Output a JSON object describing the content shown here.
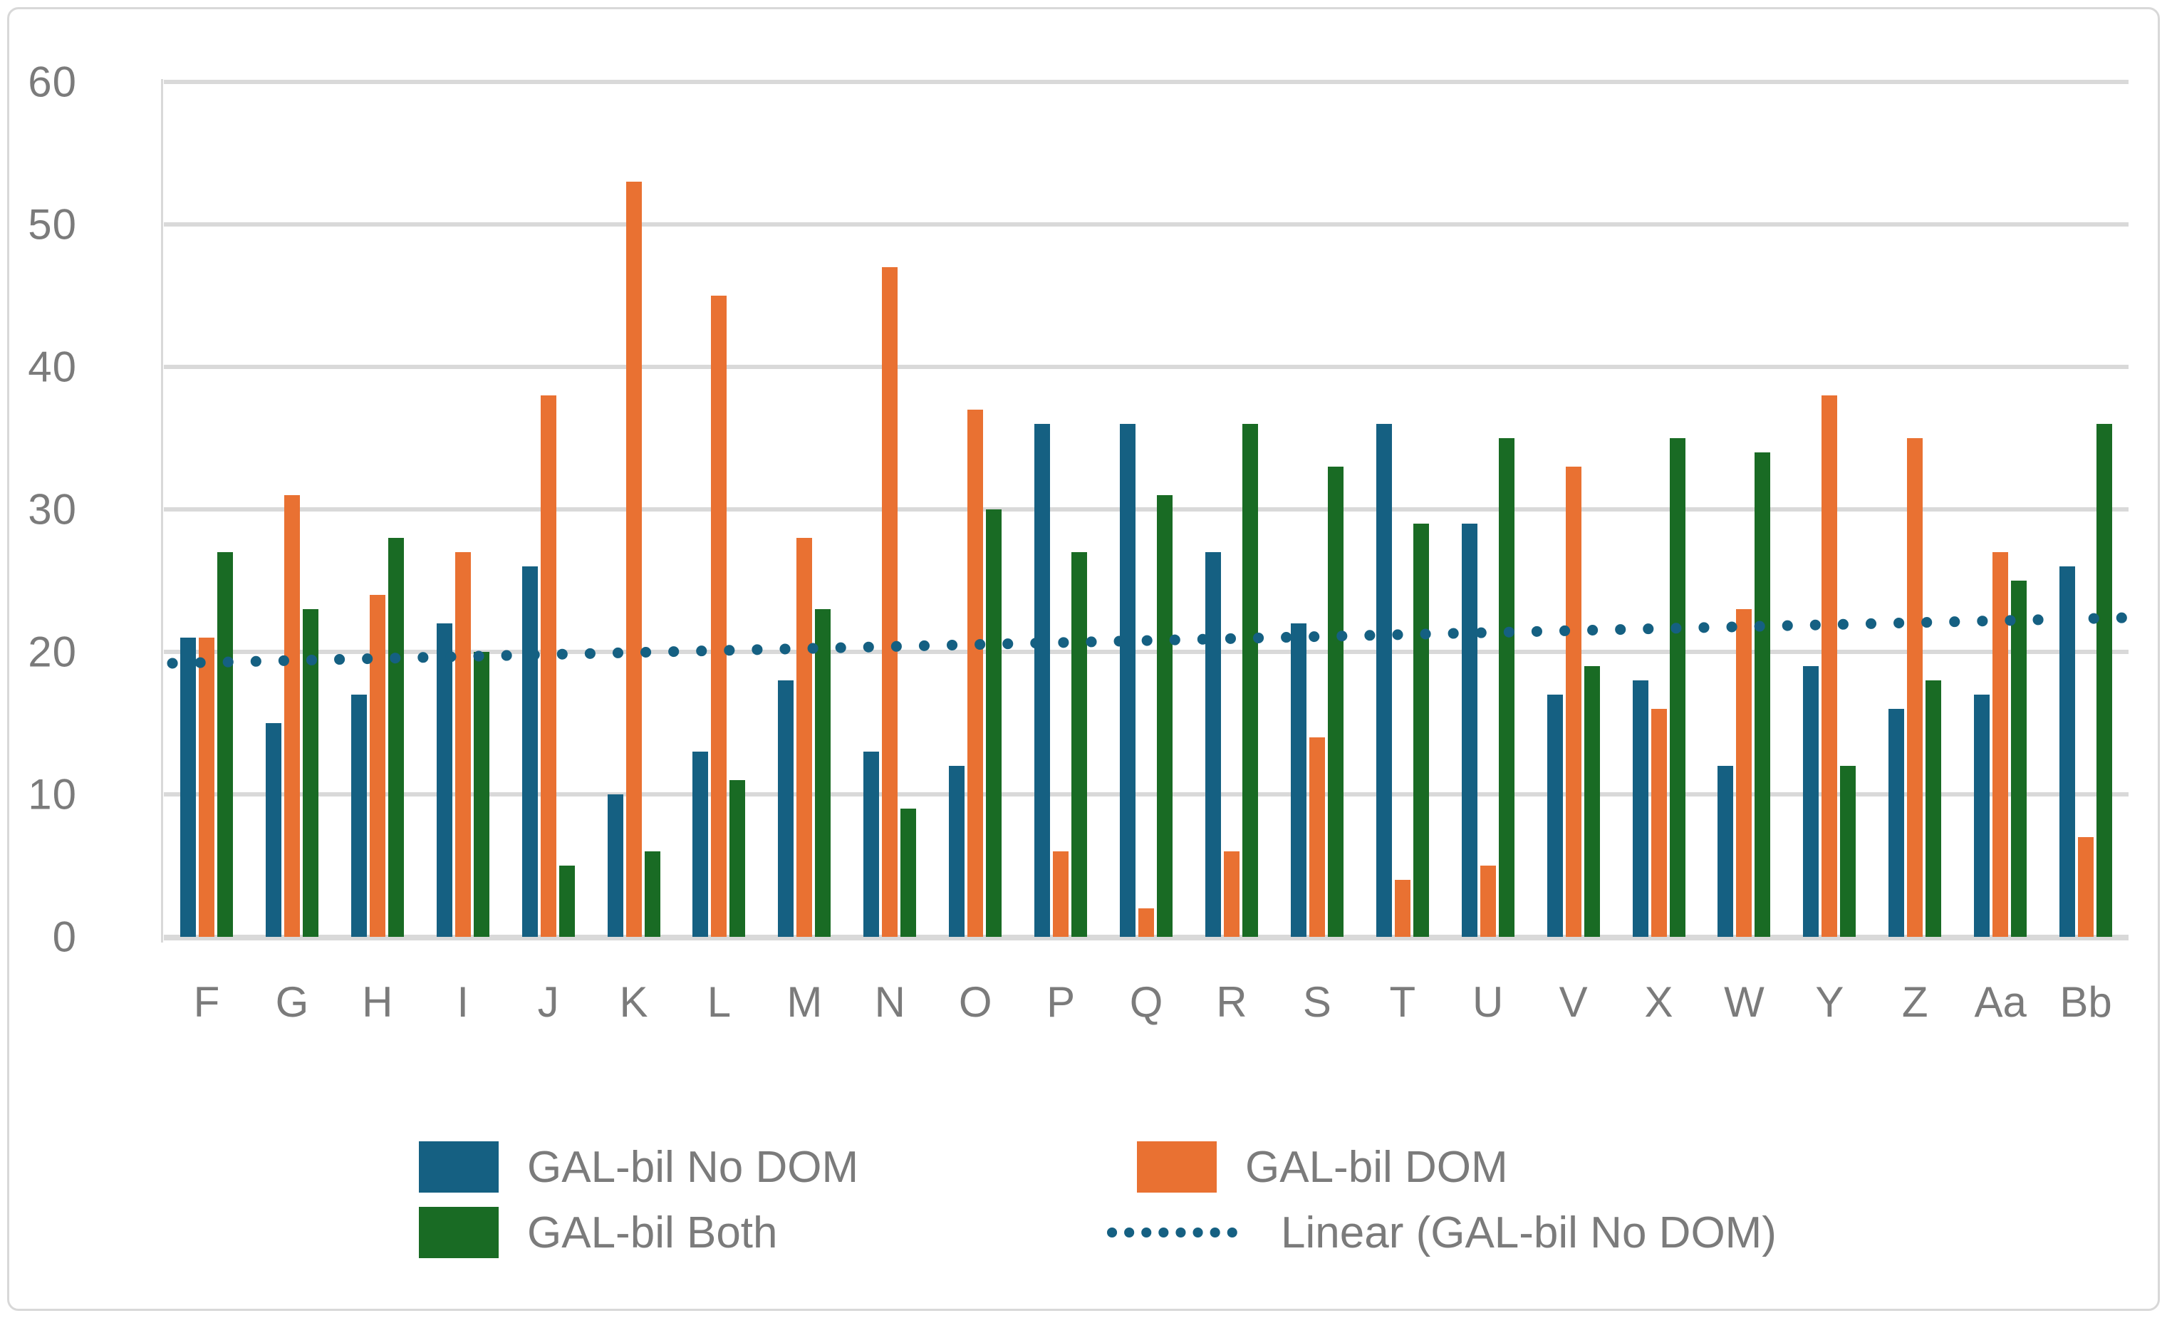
{
  "chart_data": {
    "type": "bar",
    "title": "",
    "xlabel": "",
    "ylabel": "",
    "categories": [
      "F",
      "G",
      "H",
      "I",
      "J",
      "K",
      "L",
      "M",
      "N",
      "O",
      "P",
      "Q",
      "R",
      "S",
      "T",
      "U",
      "V",
      "X",
      "W",
      "Y",
      "Z",
      "Aa",
      "Bb"
    ],
    "series": [
      {
        "name": "GAL-bil No DOM",
        "color": "#156082",
        "values": [
          21,
          15,
          17,
          22,
          26,
          10,
          13,
          18,
          13,
          12,
          36,
          36,
          27,
          22,
          36,
          29,
          17,
          18,
          12,
          19,
          16,
          17,
          26
        ]
      },
      {
        "name": "GAL-bil DOM",
        "color": "#E97132",
        "values": [
          21,
          31,
          24,
          27,
          38,
          53,
          45,
          28,
          47,
          37,
          6,
          2,
          6,
          14,
          4,
          5,
          33,
          16,
          23,
          38,
          35,
          27,
          7
        ]
      },
      {
        "name": "GAL-bil Both",
        "color": "#196B24",
        "values": [
          27,
          23,
          28,
          20,
          5,
          6,
          11,
          23,
          9,
          30,
          27,
          31,
          36,
          33,
          29,
          35,
          19,
          35,
          34,
          12,
          18,
          25,
          36
        ]
      }
    ],
    "trendline": {
      "name": "Linear (GAL-bil No DOM)",
      "series_ref": "GAL-bil No DOM",
      "color": "#156082",
      "style": "dotted",
      "start_value": 19.2,
      "end_value": 22.4
    },
    "y_axis": {
      "min": 0,
      "max": 60,
      "tick_step": 10,
      "ticks": [
        0,
        10,
        20,
        30,
        40,
        50,
        60
      ],
      "grid": true
    },
    "legend": {
      "position": "bottom",
      "entries": [
        "GAL-bil No DOM",
        "GAL-bil DOM",
        "GAL-bil Both",
        "Linear (GAL-bil No DOM)"
      ]
    },
    "colors": {
      "gridline": "#D9D9D9",
      "axis_text": "#7B7B7B",
      "background": "#FFFFFF",
      "frame_border": "#D8D8D8"
    }
  }
}
